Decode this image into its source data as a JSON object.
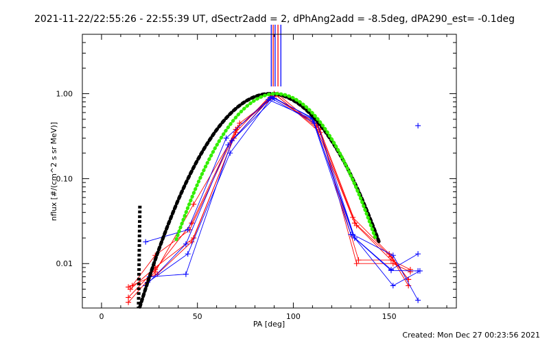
{
  "chart_data": {
    "type": "line",
    "title": "2021-11-22/22:55:26 - 22:55:39 UT, dSectr2add = 2, dPhAng2add = -8.5deg, dPA290_est= -0.1deg",
    "xlabel": "PA [deg]",
    "ylabel": "nflux [#/(cm^2 s sr MeV)]",
    "xlim": [
      -10,
      185
    ],
    "ylim": [
      0.003,
      5
    ],
    "y_scale": "log",
    "x_ticks": [
      0,
      50,
      100,
      150
    ],
    "x_tick_labels": [
      "0",
      "50",
      "100",
      "150"
    ],
    "y_ticks": [
      0.01,
      0.1,
      1.0
    ],
    "y_tick_labels": [
      "0.01",
      "0.10",
      "1.00"
    ],
    "grid": false,
    "footer": "Created: Mon Dec 27 00:23:56 2021",
    "vertical_markers": [
      {
        "x": 88.5,
        "color": "#0000ff"
      },
      {
        "x": 89.5,
        "color": "#ff0000"
      },
      {
        "x": 90.5,
        "color": "#0000ff"
      },
      {
        "x": 92.0,
        "color": "#ff0000"
      },
      {
        "x": 93.5,
        "color": "#0000ff"
      }
    ],
    "series": [
      {
        "color": "#ff0000",
        "marker": "+",
        "x": [
          14,
          28,
          48,
          70,
          88,
          112,
          131,
          150,
          160
        ],
        "y": [
          0.0035,
          0.008,
          0.05,
          0.35,
          0.95,
          0.45,
          0.035,
          0.013,
          0.0065
        ]
      },
      {
        "color": "#ff0000",
        "marker": "+",
        "x": [
          14,
          28,
          47,
          70,
          90,
          112,
          132,
          151,
          160
        ],
        "y": [
          0.004,
          0.0085,
          0.03,
          0.38,
          1.0,
          0.4,
          0.03,
          0.012,
          0.0055
        ]
      },
      {
        "color": "#ff0000",
        "marker": "+",
        "x": [
          15,
          28,
          48,
          72,
          92,
          114,
          133,
          152,
          161
        ],
        "y": [
          0.005,
          0.009,
          0.02,
          0.45,
          0.98,
          0.38,
          0.01,
          0.01,
          0.008
        ]
      },
      {
        "color": "#ff0000",
        "marker": "+",
        "x": [
          16,
          28,
          46,
          71,
          91,
          114,
          134,
          152,
          160
        ],
        "y": [
          0.0055,
          0.0125,
          0.025,
          0.4,
          0.97,
          0.35,
          0.011,
          0.011,
          0.0065
        ]
      },
      {
        "color": "#ff0000",
        "marker": "+",
        "x": [
          14,
          29,
          47,
          69,
          89,
          113,
          133,
          151,
          161
        ],
        "y": [
          0.0053,
          0.0075,
          0.018,
          0.3,
          0.93,
          0.42,
          0.028,
          0.011,
          0.0085
        ]
      },
      {
        "color": "#0000ff",
        "marker": "+",
        "x": [
          23,
          45,
          65,
          87,
          110,
          130,
          151,
          165
        ],
        "y": [
          0.018,
          0.025,
          0.3,
          0.85,
          0.5,
          0.022,
          0.0085,
          0.013
        ]
      },
      {
        "color": "#0000ff",
        "marker": "+",
        "x": [
          23,
          44,
          66,
          88,
          111,
          131,
          152,
          165
        ],
        "y": [
          0.0055,
          0.017,
          0.25,
          0.9,
          0.45,
          0.022,
          0.0125,
          0.0037
        ]
      },
      {
        "color": "#0000ff",
        "marker": "+",
        "x": [
          24,
          45,
          67,
          89,
          112,
          132,
          152,
          166
        ],
        "y": [
          0.006,
          0.013,
          0.2,
          0.92,
          0.48,
          0.02,
          0.0055,
          0.0082
        ]
      },
      {
        "color": "#0000ff",
        "marker": "+",
        "x": [
          25,
          44,
          68,
          90,
          110,
          132,
          151,
          165
        ],
        "y": [
          0.007,
          0.0075,
          0.28,
          0.88,
          0.52,
          0.02,
          0.0083,
          0.0082
        ]
      },
      {
        "color": "#0000ff",
        "marker": "+",
        "x": [
          165
        ],
        "y": [
          0.42
        ]
      }
    ],
    "fit_curves": [
      {
        "color": "#000000",
        "style": "dashed-thick",
        "x_peak": 88,
        "y_peak": 1.0,
        "sigma": 20,
        "x_min": 20,
        "x_max": 145
      },
      {
        "color": "#33ee00",
        "style": "dotted-thick",
        "x_peak": 91,
        "y_peak": 1.0,
        "sigma": 18.5,
        "x_min": 39,
        "x_max": 143
      }
    ],
    "black_spike": {
      "x": 20,
      "y_top": 0.048
    }
  }
}
